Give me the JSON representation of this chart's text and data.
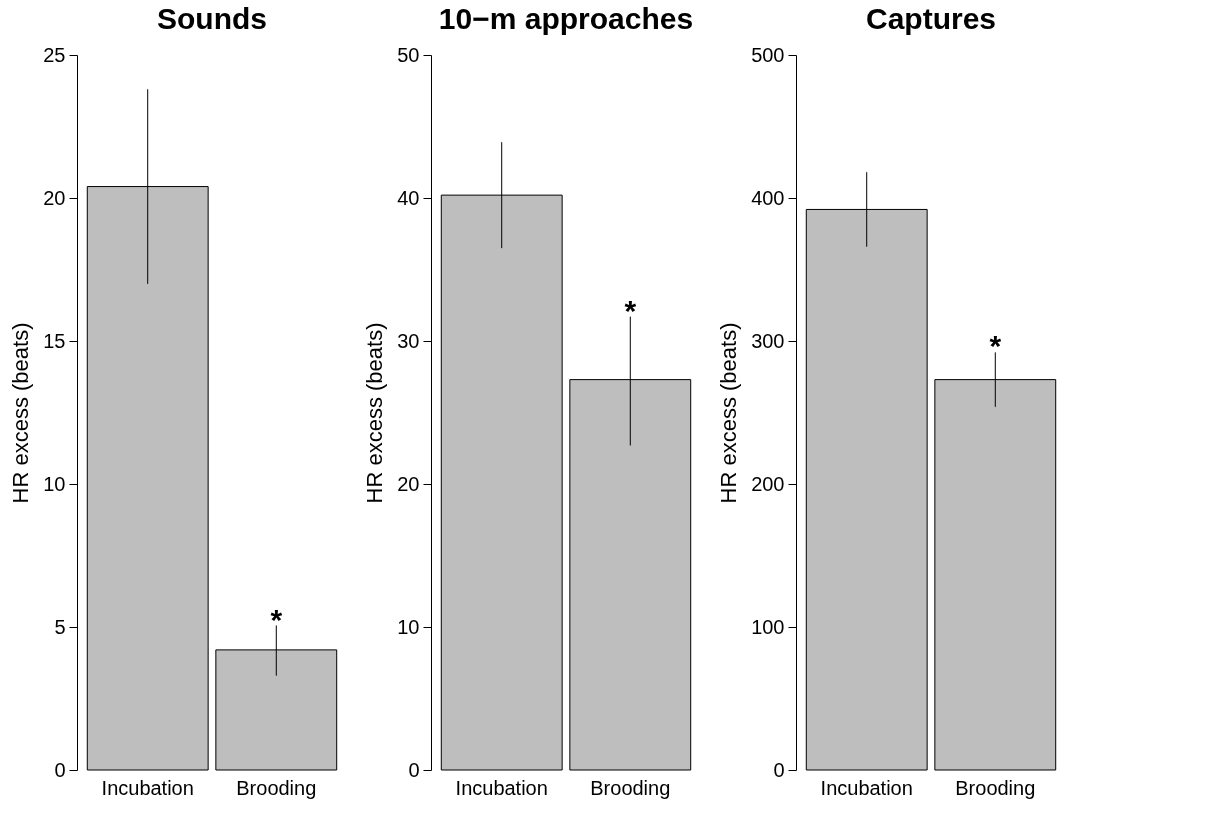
{
  "chart_data": [
    {
      "type": "bar",
      "title": "Sounds",
      "ylabel": "HR excess (beats)",
      "categories": [
        "Incubation",
        "Brooding"
      ],
      "values": [
        20.4,
        4.2
      ],
      "errors": [
        [
          17.0,
          23.8
        ],
        [
          3.3,
          5.05
        ]
      ],
      "color": "#bebebe",
      "ylim": [
        0,
        25
      ],
      "yticks": [
        0,
        5,
        10,
        15,
        20,
        25
      ],
      "annotations": [
        {
          "text": "*",
          "x": "Brooding",
          "y": 5.05
        }
      ]
    },
    {
      "type": "bar",
      "title": "10−m approaches",
      "ylabel": "HR excess (beats)",
      "categories": [
        "Incubation",
        "Brooding"
      ],
      "values": [
        40.2,
        27.3
      ],
      "errors": [
        [
          36.5,
          43.9
        ],
        [
          22.7,
          31.7
        ]
      ],
      "color": "#bebebe",
      "ylim": [
        0,
        50
      ],
      "yticks": [
        0,
        10,
        20,
        30,
        40,
        50
      ],
      "annotations": [
        {
          "text": "*",
          "x": "Brooding",
          "y": 31.7
        }
      ]
    },
    {
      "type": "bar",
      "title": "Captures",
      "ylabel": "HR excess (beats)",
      "categories": [
        "Incubation",
        "Brooding"
      ],
      "values": [
        392,
        273
      ],
      "errors": [
        [
          366,
          418
        ],
        [
          254,
          292
        ]
      ],
      "color": "#bebebe",
      "ylim": [
        0,
        500
      ],
      "yticks": [
        0,
        100,
        200,
        300,
        400,
        500
      ],
      "annotations": [
        {
          "text": "*",
          "x": "Brooding",
          "y": 292
        }
      ]
    }
  ]
}
